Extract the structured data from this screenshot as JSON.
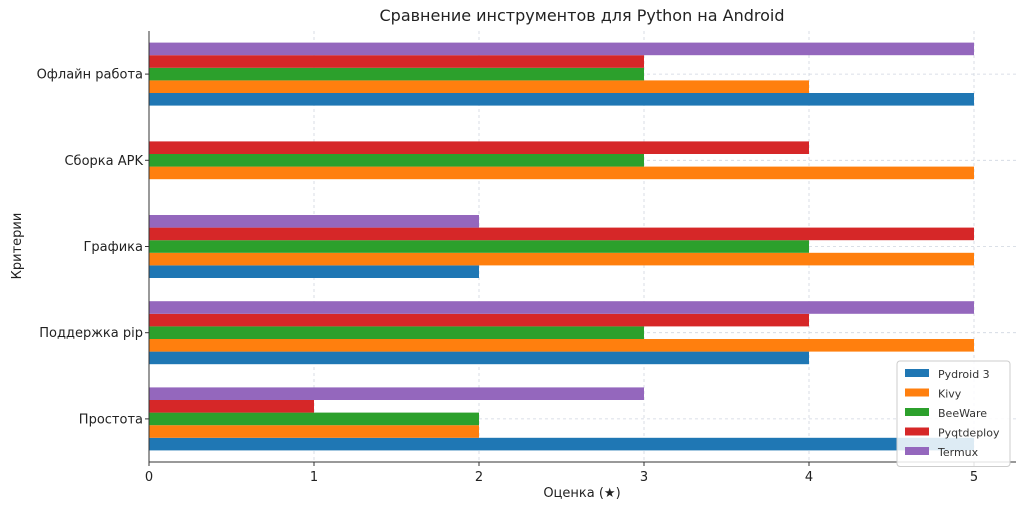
{
  "chart_data": {
    "type": "bar",
    "orientation": "horizontal",
    "title": "Сравнение инструментов для Python на Android",
    "xlabel": "Оценка (★)",
    "ylabel": "Критерии",
    "xlim": [
      0,
      5.25
    ],
    "xticks": [
      "0",
      "1",
      "2",
      "3",
      "4",
      "5"
    ],
    "grid": true,
    "legend_position": "bottom-right",
    "categories": [
      "Простота",
      "Поддержка pip",
      "Графика",
      "Сборка APK",
      "Офлайн работа"
    ],
    "series": [
      {
        "name": "Pydroid 3",
        "color": "#1f77b4",
        "values": [
          5,
          4,
          2,
          0,
          5
        ]
      },
      {
        "name": "Kivy",
        "color": "#ff7f0e",
        "values": [
          2,
          5,
          5,
          5,
          4
        ]
      },
      {
        "name": "BeeWare",
        "color": "#2ca02c",
        "values": [
          2,
          3,
          4,
          3,
          3
        ]
      },
      {
        "name": "Pyqtdeploy",
        "color": "#d62728",
        "values": [
          1,
          4,
          5,
          4,
          3
        ]
      },
      {
        "name": "Termux",
        "color": "#9467bd",
        "values": [
          3,
          5,
          2,
          0,
          5
        ]
      }
    ]
  }
}
